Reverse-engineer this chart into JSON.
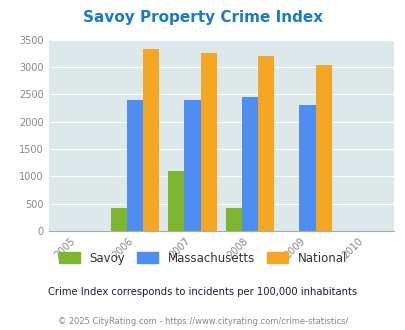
{
  "title": "Savoy Property Crime Index",
  "years": [
    2005,
    2006,
    2007,
    2008,
    2009,
    2010
  ],
  "data_years": [
    2006,
    2007,
    2008,
    2009
  ],
  "savoy": [
    420,
    1100,
    420,
    0
  ],
  "massachusetts": [
    2400,
    2400,
    2450,
    2300
  ],
  "national": [
    3330,
    3250,
    3200,
    3040
  ],
  "ylim": [
    0,
    3500
  ],
  "yticks": [
    0,
    500,
    1000,
    1500,
    2000,
    2500,
    3000,
    3500
  ],
  "color_savoy": "#7db72f",
  "color_mass": "#4d8ef0",
  "color_nat": "#f5a623",
  "bg_color": "#dde8ea",
  "title_color": "#1a7acc",
  "subtitle": "Crime Index corresponds to incidents per 100,000 inhabitants",
  "footer": "© 2025 CityRating.com - https://www.cityrating.com/crime-statistics/",
  "bar_width": 0.28,
  "subtitle_color": "#1a1a4e",
  "footer_color": "#888888"
}
